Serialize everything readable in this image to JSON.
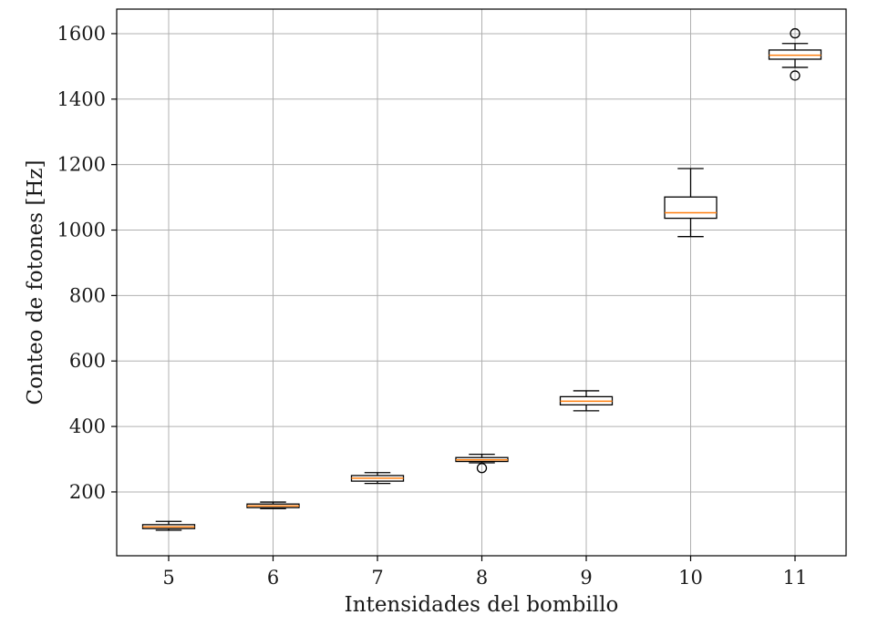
{
  "chart_data": {
    "type": "box",
    "xlabel": "Intensidades del bombillo",
    "ylabel": "Conteo de fotones [Hz]",
    "categories": [
      "5",
      "6",
      "7",
      "8",
      "9",
      "10",
      "11"
    ],
    "yticks": [
      200,
      400,
      600,
      800,
      1000,
      1200,
      1400,
      1600
    ],
    "ylim": [
      5,
      1675
    ],
    "grid": true,
    "boxes": [
      {
        "category": "5",
        "whislo": 83,
        "q1": 88,
        "med": 93,
        "q3": 100,
        "whishi": 110,
        "fliers": []
      },
      {
        "category": "6",
        "whislo": 149,
        "q1": 152,
        "med": 157,
        "q3": 163,
        "whishi": 169,
        "fliers": []
      },
      {
        "category": "7",
        "whislo": 226,
        "q1": 233,
        "med": 242,
        "q3": 250,
        "whishi": 259,
        "fliers": []
      },
      {
        "category": "8",
        "whislo": 289,
        "q1": 293,
        "med": 298,
        "q3": 305,
        "whishi": 315,
        "fliers": [
          273
        ]
      },
      {
        "category": "9",
        "whislo": 448,
        "q1": 466,
        "med": 477,
        "q3": 491,
        "whishi": 509,
        "fliers": []
      },
      {
        "category": "10",
        "whislo": 980,
        "q1": 1036,
        "med": 1053,
        "q3": 1101,
        "whishi": 1188,
        "fliers": []
      },
      {
        "category": "11",
        "whislo": 1497,
        "q1": 1522,
        "med": 1534,
        "q3": 1550,
        "whishi": 1570,
        "fliers": [
          1601,
          1472
        ]
      }
    ],
    "colors": {
      "median": "#ff7f0e",
      "box": "#000000",
      "grid": "#b0b0b0"
    }
  }
}
